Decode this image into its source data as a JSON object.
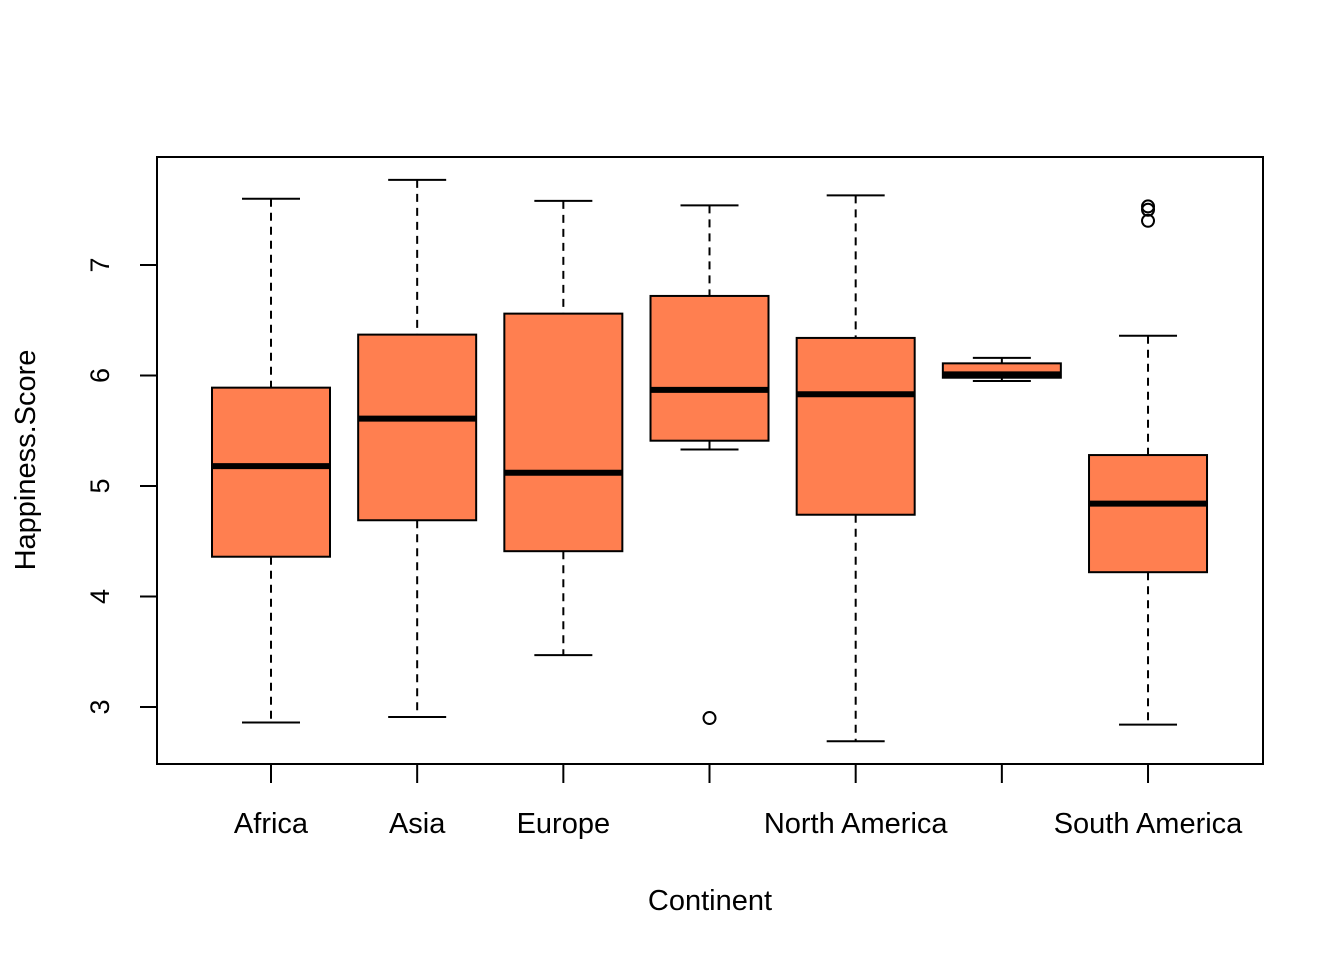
{
  "chart_data": {
    "type": "box",
    "title": "",
    "xlabel": "Continent",
    "ylabel": "Happiness.Score",
    "ylim": [
      2.5,
      7.98
    ],
    "yticks": [
      3,
      4,
      5,
      6,
      7
    ],
    "grid": false,
    "legend": "none",
    "box_color": "#FF7F50",
    "categories": [
      "Africa",
      "Asia",
      "Europe",
      "",
      "North America",
      "",
      "South America"
    ],
    "boxes": [
      {
        "category": "Africa",
        "min": 2.86,
        "q1": 4.36,
        "median": 5.18,
        "q3": 5.89,
        "max": 7.6,
        "outliers": []
      },
      {
        "category": "Asia",
        "min": 2.91,
        "q1": 4.69,
        "median": 5.61,
        "q3": 6.37,
        "max": 7.77,
        "outliers": []
      },
      {
        "category": "Europe",
        "min": 3.47,
        "q1": 4.41,
        "median": 5.12,
        "q3": 6.56,
        "max": 7.58,
        "outliers": []
      },
      {
        "category": "",
        "min": 5.33,
        "q1": 5.41,
        "median": 5.87,
        "q3": 6.72,
        "max": 7.54,
        "outliers": [
          2.9
        ]
      },
      {
        "category": "North America",
        "min": 2.69,
        "q1": 4.74,
        "median": 5.83,
        "q3": 6.34,
        "max": 7.63,
        "outliers": []
      },
      {
        "category": "",
        "min": 5.95,
        "q1": 5.98,
        "median": 6.01,
        "q3": 6.11,
        "max": 6.16,
        "outliers": []
      },
      {
        "category": "South America",
        "min": 2.84,
        "q1": 4.22,
        "median": 4.84,
        "q3": 5.28,
        "max": 6.36,
        "outliers": [
          7.4,
          7.5,
          7.53
        ]
      }
    ]
  }
}
